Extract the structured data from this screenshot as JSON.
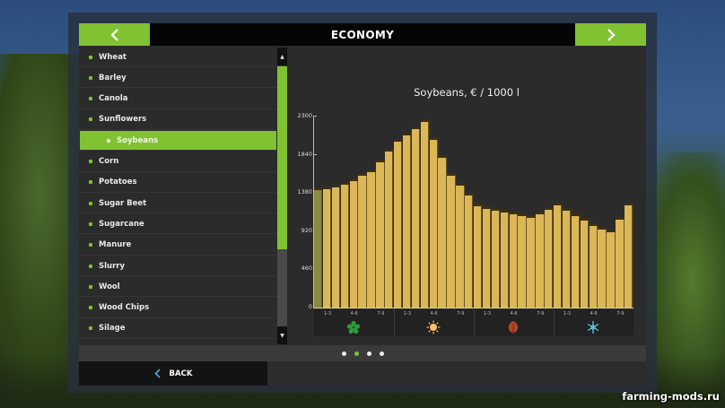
{
  "header": {
    "title": "ECONOMY",
    "prev_icon": "chevron-left-icon",
    "next_icon": "chevron-right-icon"
  },
  "fill_types": {
    "selected_index": 4,
    "items": [
      {
        "label": "Wheat"
      },
      {
        "label": "Barley"
      },
      {
        "label": "Canola"
      },
      {
        "label": "Sunflowers"
      },
      {
        "label": "Soybeans"
      },
      {
        "label": "Corn"
      },
      {
        "label": "Potatoes"
      },
      {
        "label": "Sugar Beet"
      },
      {
        "label": "Sugarcane"
      },
      {
        "label": "Manure"
      },
      {
        "label": "Slurry"
      },
      {
        "label": "Wool"
      },
      {
        "label": "Wood Chips"
      },
      {
        "label": "Silage"
      }
    ]
  },
  "scrollbar": {
    "up_icon": "arrow-up-icon",
    "down_icon": "arrow-down-icon"
  },
  "pager": {
    "count": 4,
    "active_index": 1
  },
  "footer": {
    "back_label": "BACK",
    "back_icon": "chevron-left-icon"
  },
  "watermark": "farming-mods.ru",
  "colors": {
    "accent_green": "#80c232",
    "bar": "#dbb758",
    "bar_current": "#8b8a3c",
    "spring": "#2f9a3a",
    "summer": "#f0b456",
    "autumn": "#b2452a",
    "winter": "#6cc4d8"
  },
  "chart_data": {
    "type": "bar",
    "title": "Soybeans, € / 1000 l",
    "xlabel": "",
    "ylabel": "€ / 1000 l",
    "ylim": [
      0,
      2300
    ],
    "yticks": [
      0,
      460,
      920,
      1380,
      1840,
      2300
    ],
    "grid": false,
    "legend": null,
    "current_bar_index": 0,
    "categories": [
      "Spring 1-3",
      "Spring 1-3",
      "Spring 1-3",
      "Spring 4-6",
      "Spring 4-6",
      "Spring 4-6",
      "Spring 7-9",
      "Spring 7-9",
      "Spring 7-9",
      "Summer 1-3",
      "Summer 1-3",
      "Summer 1-3",
      "Summer 4-6",
      "Summer 4-6",
      "Summer 4-6",
      "Summer 7-9",
      "Summer 7-9",
      "Summer 7-9",
      "Autumn 1-3",
      "Autumn 1-3",
      "Autumn 1-3",
      "Autumn 4-6",
      "Autumn 4-6",
      "Autumn 4-6",
      "Autumn 7-9",
      "Autumn 7-9",
      "Autumn 7-9",
      "Winter 1-3",
      "Winter 1-3",
      "Winter 1-3",
      "Winter 4-6",
      "Winter 4-6",
      "Winter 4-6",
      "Winter 7-9",
      "Winter 7-9",
      "Winter 7-9"
    ],
    "values": [
      1415,
      1426,
      1447,
      1480,
      1523,
      1588,
      1631,
      1750,
      1879,
      1998,
      2074,
      2149,
      2236,
      2020,
      1804,
      1588,
      1469,
      1350,
      1220,
      1188,
      1166,
      1145,
      1123,
      1102,
      1080,
      1123,
      1177,
      1231,
      1166,
      1102,
      1048,
      983,
      940,
      907,
      1058,
      1231
    ],
    "x_tick_labels": [
      "1-3",
      "4-6",
      "7-9",
      "1-3",
      "4-6",
      "7-9",
      "1-3",
      "4-6",
      "7-9",
      "1-3",
      "4-6",
      "7-9"
    ],
    "seasons": [
      {
        "name": "Spring",
        "icon": "spring-flower-icon"
      },
      {
        "name": "Summer",
        "icon": "summer-sun-icon"
      },
      {
        "name": "Autumn",
        "icon": "autumn-leaf-icon"
      },
      {
        "name": "Winter",
        "icon": "winter-snowflake-icon"
      }
    ]
  }
}
